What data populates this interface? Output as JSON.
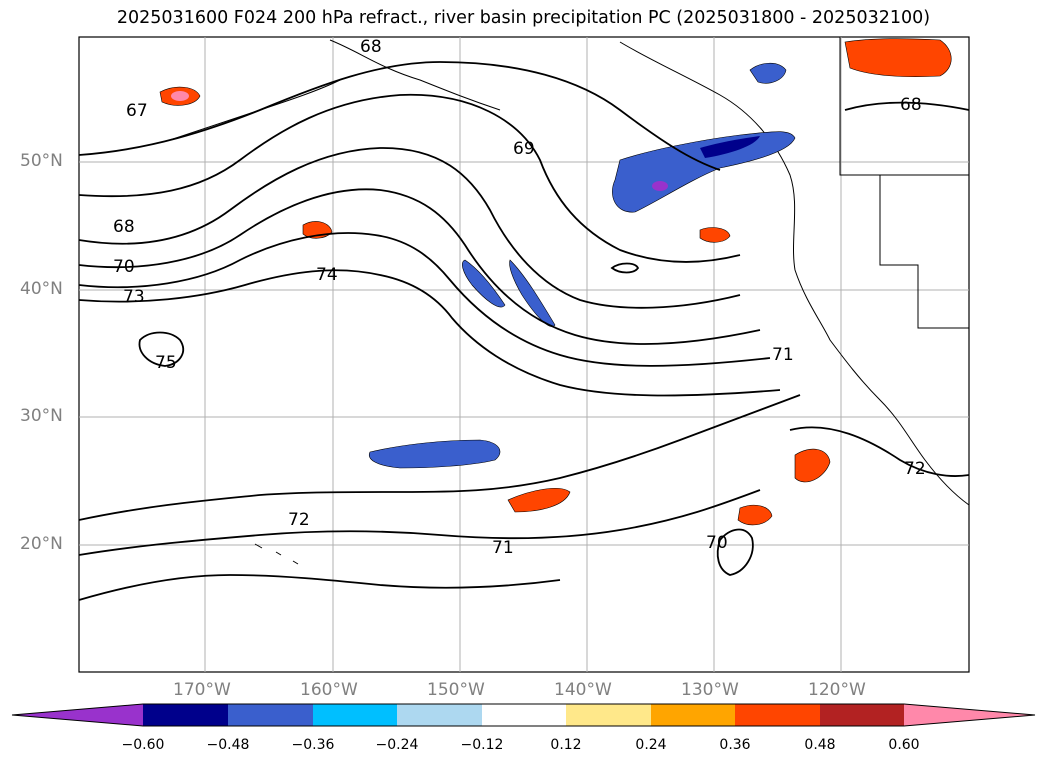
{
  "map": {
    "title": "2025031600 F024 200 hPa refract., river basin precipitation PC (2025031800 - 2025032100)",
    "lat_labels": [
      "50°N",
      "40°N",
      "30°N",
      "20°N"
    ],
    "lon_labels": [
      "170°W",
      "160°W",
      "150°W",
      "140°W",
      "130°W",
      "120°W"
    ],
    "contour_labels": [
      "68",
      "67",
      "69",
      "68",
      "68",
      "70",
      "73",
      "74",
      "75",
      "71",
      "72",
      "71",
      "70",
      "72"
    ],
    "colorbar": {
      "ticks": [
        "−0.60",
        "−0.48",
        "−0.36",
        "−0.24",
        "−0.12",
        "0.12",
        "0.24",
        "0.36",
        "0.48",
        "0.60"
      ],
      "colors": [
        "#9932cc",
        "#00008b",
        "#3a5fcd",
        "#00bfff",
        "#add8f0",
        "#ffffff",
        "#ffe88a",
        "#ffa500",
        "#ff4500",
        "#b22222",
        "#ff88aa"
      ]
    },
    "colors": {
      "grid": "#b0b0b0",
      "contour": "#000000",
      "label": "#808080"
    }
  }
}
